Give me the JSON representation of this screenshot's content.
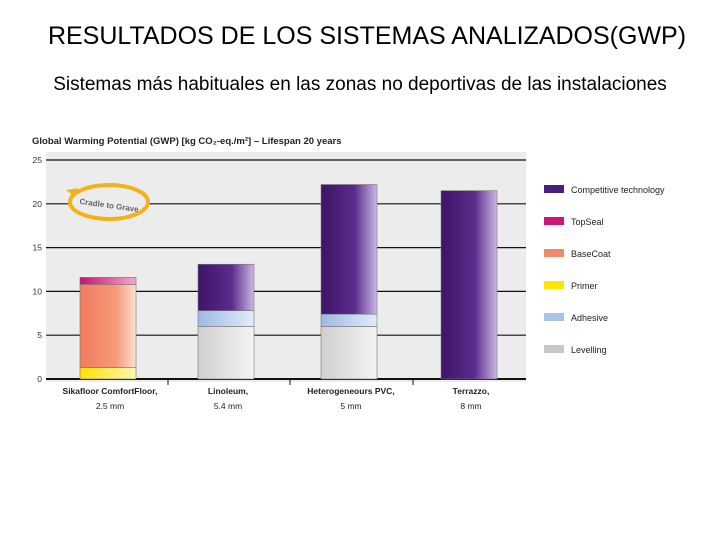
{
  "slide": {
    "title": "RESULTADOS DE LOS SISTEMAS ANALIZADOS(GWP)",
    "subtitle": "Sistemas más habituales en las zonas no deportivas de las instalaciones"
  },
  "chart_data": {
    "type": "stacked-bar",
    "title": "Global Warming Potential (GWP) [kg CO₂-eq./m²] – Lifespan 20 years",
    "badge": "Cradle to Grave",
    "ylim": [
      0,
      25
    ],
    "yticks": [
      0,
      5,
      10,
      15,
      20,
      25
    ],
    "grid": true,
    "legend_position": "right",
    "categories": [
      {
        "name": "Sikafloor ComfortFloor,",
        "detail": "2.5 mm"
      },
      {
        "name": "Linoleum,",
        "detail": "5.4 mm"
      },
      {
        "name": "Heterogeneours PVC,",
        "detail": "5 mm"
      },
      {
        "name": "Terrazzo,",
        "detail": "8 mm"
      }
    ],
    "series": [
      {
        "name": "Levelling",
        "color": "#c8c8c8",
        "values": [
          0,
          6.0,
          6.0,
          0
        ]
      },
      {
        "name": "Adhesive",
        "color": "#a9c3e8",
        "values": [
          0,
          1.8,
          1.4,
          0
        ]
      },
      {
        "name": "Primer",
        "color": "#ffe600",
        "values": [
          1.3,
          0,
          0,
          0
        ]
      },
      {
        "name": "BaseCoat",
        "color": "#f08a6a",
        "values": [
          9.5,
          0,
          0,
          0
        ]
      },
      {
        "name": "TopSeal",
        "color": "#d0157a",
        "values": [
          0.8,
          0,
          0,
          0
        ]
      },
      {
        "name": "Competitive technology",
        "color": "#4a1f78",
        "values": [
          0,
          5.3,
          14.8,
          21.5
        ]
      }
    ],
    "legend_order": [
      "Competitive technology",
      "TopSeal",
      "BaseCoat",
      "Primer",
      "Adhesive",
      "Levelling"
    ]
  }
}
